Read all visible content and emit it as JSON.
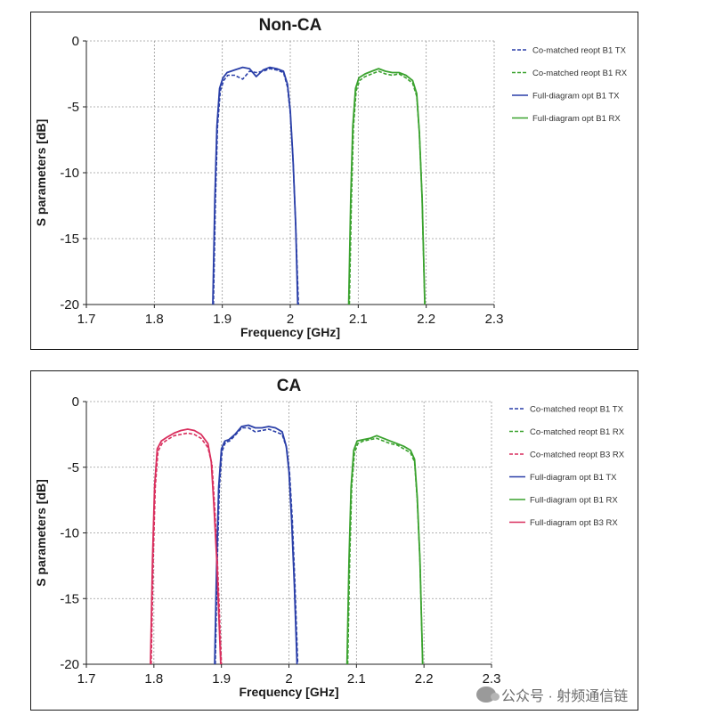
{
  "watermark": "公众号 · 射频通信链",
  "chart_data": [
    {
      "type": "line",
      "title": "Non-CA",
      "xlabel": "Frequency [GHz]",
      "ylabel": "S parameters [dB]",
      "xlim": [
        1.7,
        2.3
      ],
      "ylim": [
        -20,
        0
      ],
      "xticks": [
        "1.7",
        "1.8",
        "1.9",
        "2",
        "2.1",
        "2.2",
        "2.3"
      ],
      "yticks": [
        "0",
        "-5",
        "-10",
        "-15",
        "-20"
      ],
      "grid": true,
      "legend_position": "right",
      "series": [
        {
          "name": "Co-matched reopt B1 TX",
          "color": "#2a3fa8",
          "dash": true,
          "x": [
            1.887,
            1.89,
            1.893,
            1.897,
            1.902,
            1.908,
            1.918,
            1.93,
            1.94,
            1.95,
            1.96,
            1.97,
            1.98,
            1.99,
            1.996,
            2.0,
            2.004,
            2.008,
            2.012
          ],
          "y": [
            -20,
            -12,
            -6.5,
            -3.8,
            -3.0,
            -2.6,
            -2.6,
            -2.9,
            -2.3,
            -2.4,
            -2.3,
            -2.1,
            -2.2,
            -2.4,
            -3.5,
            -5.5,
            -9,
            -14,
            -20
          ]
        },
        {
          "name": "Co-matched reopt B1 RX",
          "color": "#3aa22e",
          "dash": true,
          "x": [
            2.087,
            2.09,
            2.093,
            2.097,
            2.102,
            2.11,
            2.12,
            2.13,
            2.14,
            2.15,
            2.16,
            2.17,
            2.18,
            2.186,
            2.19,
            2.194,
            2.198
          ],
          "y": [
            -20,
            -12,
            -6.5,
            -3.8,
            -3.0,
            -2.7,
            -2.5,
            -2.3,
            -2.5,
            -2.6,
            -2.5,
            -2.8,
            -3.2,
            -4.2,
            -7,
            -12,
            -20
          ]
        },
        {
          "name": "Full-diagram opt B1 TX",
          "color": "#2a3fa8",
          "dash": false,
          "x": [
            1.886,
            1.889,
            1.892,
            1.896,
            1.901,
            1.907,
            1.918,
            1.93,
            1.94,
            1.95,
            1.96,
            1.97,
            1.98,
            1.99,
            1.996,
            2.0,
            2.004,
            2.008,
            2.011
          ],
          "y": [
            -20,
            -12,
            -6.5,
            -3.6,
            -2.8,
            -2.4,
            -2.2,
            -2.0,
            -2.1,
            -2.7,
            -2.2,
            -2.0,
            -2.1,
            -2.3,
            -3.3,
            -5.3,
            -9,
            -14,
            -20
          ]
        },
        {
          "name": "Full-diagram opt B1 RX",
          "color": "#3aa22e",
          "dash": false,
          "x": [
            2.086,
            2.089,
            2.092,
            2.096,
            2.101,
            2.11,
            2.12,
            2.13,
            2.14,
            2.15,
            2.16,
            2.17,
            2.18,
            2.186,
            2.19,
            2.194,
            2.198
          ],
          "y": [
            -20,
            -12,
            -6.5,
            -3.6,
            -2.8,
            -2.5,
            -2.3,
            -2.1,
            -2.3,
            -2.4,
            -2.4,
            -2.6,
            -3.0,
            -4.0,
            -7,
            -12,
            -20
          ]
        }
      ]
    },
    {
      "type": "line",
      "title": "CA",
      "xlabel": "Frequency [GHz]",
      "ylabel": "S parameters [dB]",
      "xlim": [
        1.7,
        2.3
      ],
      "ylim": [
        -20,
        0
      ],
      "xticks": [
        "1.7",
        "1.8",
        "1.9",
        "2",
        "2.1",
        "2.2",
        "2.3"
      ],
      "yticks": [
        "0",
        "-5",
        "-10",
        "-15",
        "-20"
      ],
      "grid": true,
      "legend_position": "right",
      "series": [
        {
          "name": "Co-matched reopt B1 TX",
          "color": "#2a3fa8",
          "dash": true,
          "x": [
            1.891,
            1.894,
            1.897,
            1.901,
            1.906,
            1.912,
            1.92,
            1.93,
            1.94,
            1.95,
            1.96,
            1.97,
            1.98,
            1.99,
            1.997,
            2.001,
            2.005,
            2.009,
            2.013
          ],
          "y": [
            -20,
            -12,
            -6.5,
            -3.8,
            -3.1,
            -3.0,
            -2.6,
            -2.0,
            -2.0,
            -2.3,
            -2.2,
            -2.1,
            -2.3,
            -2.5,
            -3.6,
            -5.5,
            -9,
            -14,
            -20
          ]
        },
        {
          "name": "Co-matched reopt B1 RX",
          "color": "#3aa22e",
          "dash": true,
          "x": [
            2.087,
            2.09,
            2.093,
            2.097,
            2.102,
            2.11,
            2.12,
            2.13,
            2.14,
            2.15,
            2.16,
            2.17,
            2.18,
            2.186,
            2.19,
            2.194,
            2.198
          ],
          "y": [
            -20,
            -12,
            -6.5,
            -3.9,
            -3.2,
            -3.0,
            -2.9,
            -2.8,
            -3.0,
            -3.2,
            -3.3,
            -3.6,
            -3.9,
            -4.6,
            -7.5,
            -12,
            -20
          ]
        },
        {
          "name": "Co-matched reopt B3 RX",
          "color": "#d92f5e",
          "dash": true,
          "x": [
            1.796,
            1.799,
            1.802,
            1.806,
            1.812,
            1.82,
            1.83,
            1.84,
            1.85,
            1.86,
            1.87,
            1.88,
            1.886,
            1.89,
            1.894,
            1.897,
            1.9
          ],
          "y": [
            -20,
            -12,
            -6.5,
            -3.8,
            -3.2,
            -2.9,
            -2.6,
            -2.5,
            -2.4,
            -2.5,
            -2.8,
            -3.5,
            -4.8,
            -8,
            -12,
            -16,
            -20
          ]
        },
        {
          "name": "Full-diagram opt B1 TX",
          "color": "#2a3fa8",
          "dash": false,
          "x": [
            1.89,
            1.893,
            1.896,
            1.9,
            1.905,
            1.911,
            1.92,
            1.93,
            1.94,
            1.95,
            1.96,
            1.97,
            1.98,
            1.99,
            1.996,
            2.0,
            2.004,
            2.008,
            2.012
          ],
          "y": [
            -20,
            -12,
            -6.5,
            -3.6,
            -3.0,
            -2.9,
            -2.5,
            -1.9,
            -1.8,
            -2.0,
            -2.0,
            -1.9,
            -2.0,
            -2.3,
            -3.4,
            -5.3,
            -9,
            -14,
            -20
          ]
        },
        {
          "name": "Full-diagram opt B1 RX",
          "color": "#3aa22e",
          "dash": false,
          "x": [
            2.086,
            2.089,
            2.092,
            2.096,
            2.101,
            2.11,
            2.12,
            2.13,
            2.14,
            2.15,
            2.16,
            2.17,
            2.18,
            2.186,
            2.19,
            2.194,
            2.198
          ],
          "y": [
            -20,
            -12,
            -6.5,
            -3.7,
            -3.0,
            -2.9,
            -2.8,
            -2.6,
            -2.8,
            -3.0,
            -3.2,
            -3.4,
            -3.7,
            -4.4,
            -7.3,
            -12,
            -20
          ]
        },
        {
          "name": "Full-diagram opt B3 RX",
          "color": "#d92f5e",
          "dash": false,
          "x": [
            1.795,
            1.798,
            1.801,
            1.805,
            1.811,
            1.82,
            1.83,
            1.84,
            1.85,
            1.86,
            1.87,
            1.88,
            1.885,
            1.889,
            1.893,
            1.896,
            1.899
          ],
          "y": [
            -20,
            -12,
            -6.5,
            -3.6,
            -3.0,
            -2.7,
            -2.4,
            -2.2,
            -2.1,
            -2.2,
            -2.5,
            -3.2,
            -4.6,
            -8,
            -12,
            -16,
            -20
          ]
        }
      ]
    }
  ]
}
